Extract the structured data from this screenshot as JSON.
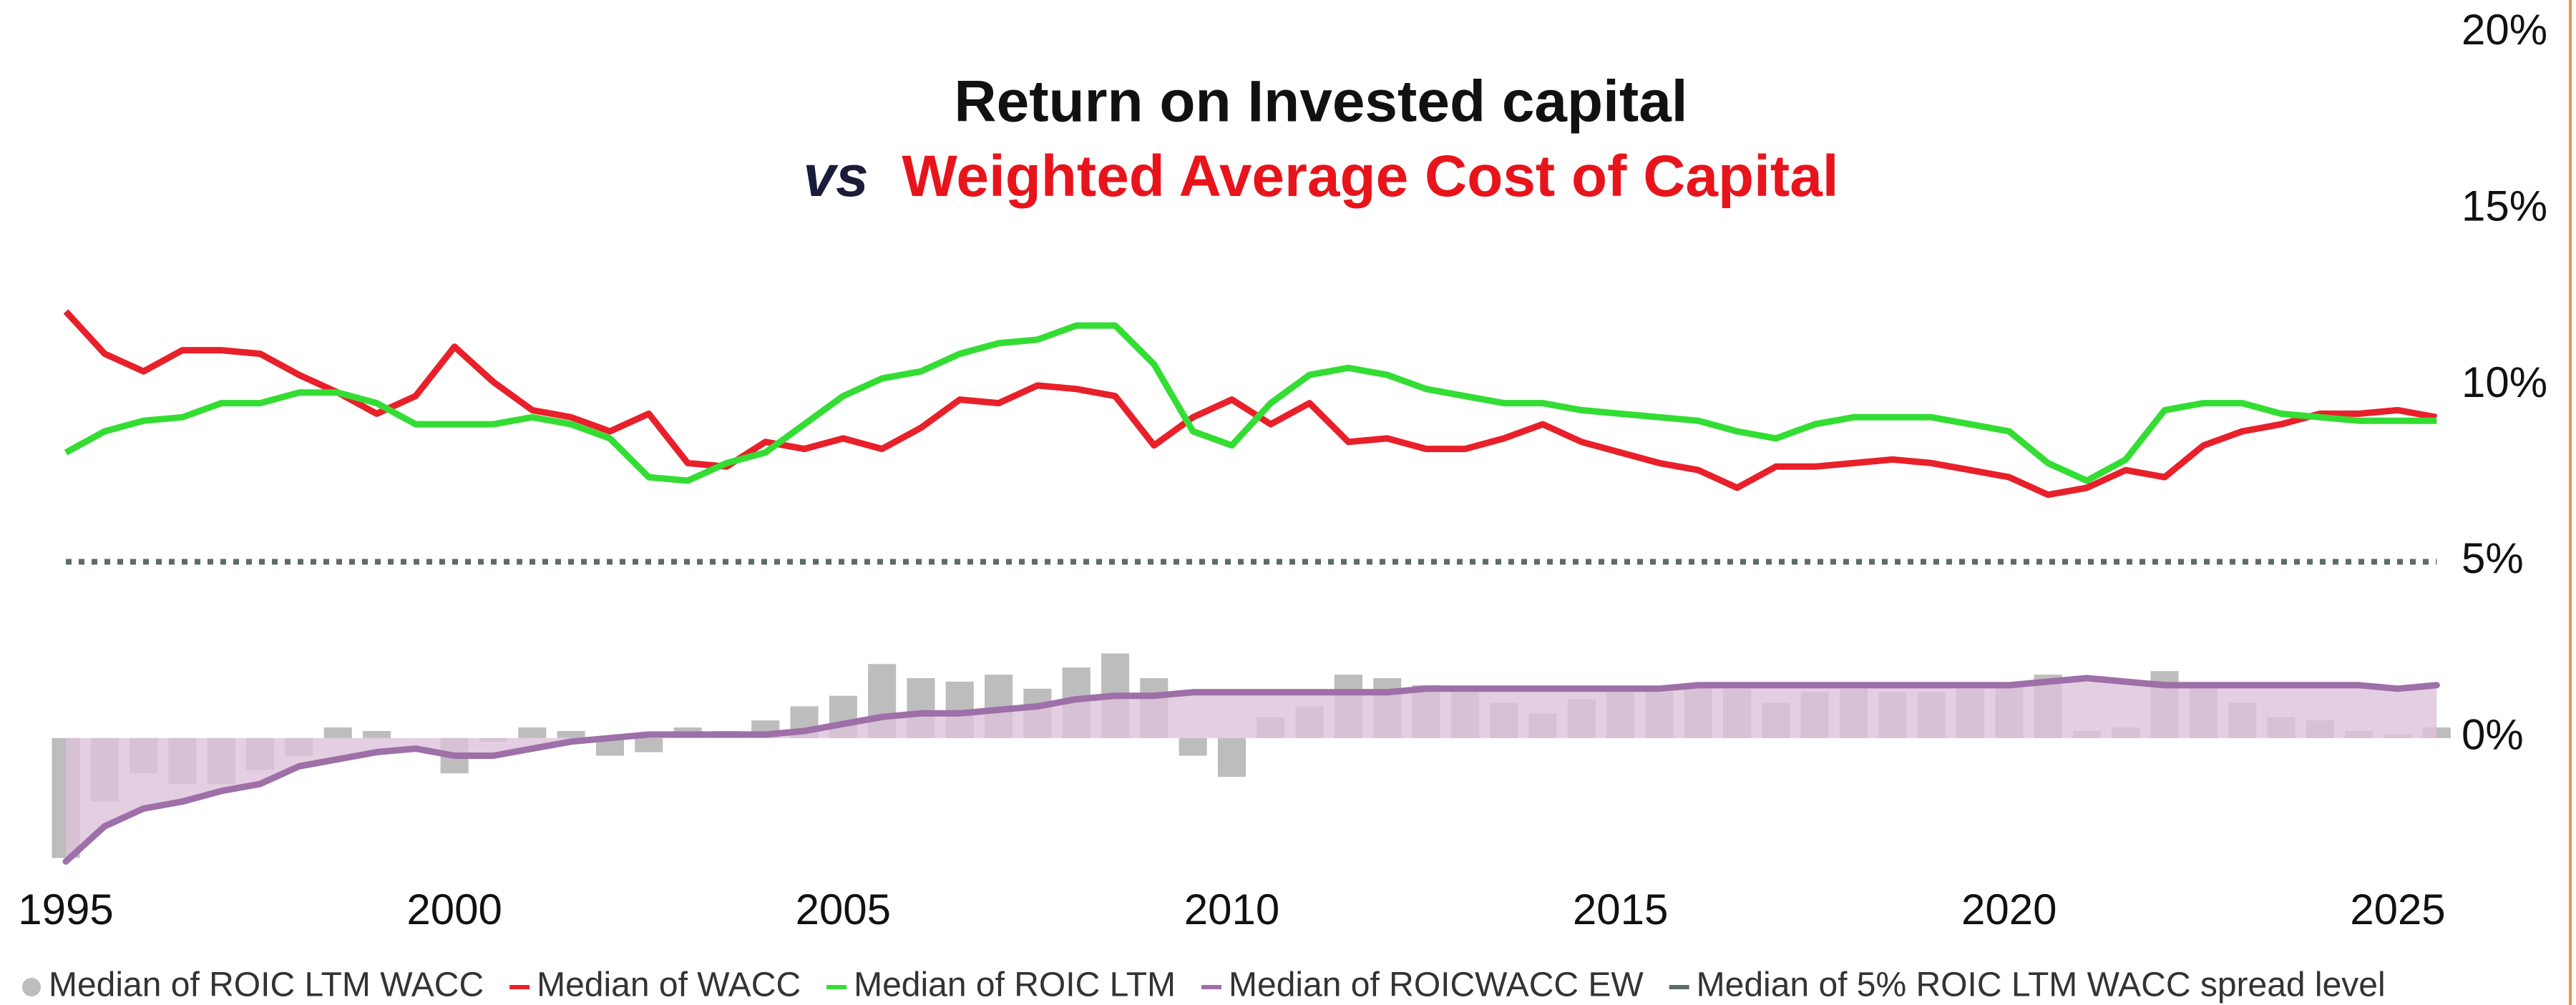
{
  "chart_data": {
    "type": "line",
    "title": "Return on Invested capital",
    "title_color": "#1fb14b",
    "subtitle_prefix": "vs",
    "subtitle_prefix_color": "#1b1b3a",
    "subtitle": "Weighted Average Cost of Capital",
    "subtitle_color": "#e8141c",
    "x": [
      1995,
      1995.5,
      1996,
      1996.5,
      1997,
      1997.5,
      1998,
      1998.5,
      1999,
      1999.5,
      2000,
      2000.5,
      2001,
      2001.5,
      2002,
      2002.5,
      2003,
      2003.5,
      2004,
      2004.5,
      2005,
      2005.5,
      2006,
      2006.5,
      2007,
      2007.5,
      2008,
      2008.5,
      2009,
      2009.5,
      2010,
      2010.5,
      2011,
      2011.5,
      2012,
      2012.5,
      2013,
      2013.5,
      2014,
      2014.5,
      2015,
      2015.5,
      2016,
      2016.5,
      2017,
      2017.5,
      2018,
      2018.5,
      2019,
      2019.5,
      2020,
      2020.5,
      2021,
      2021.5,
      2022,
      2022.5,
      2023,
      2023.5,
      2024,
      2024.5,
      2025,
      2025.5
    ],
    "series": [
      {
        "name": "Median of ROIC LTM WACC",
        "style": "bar",
        "color": "#bdbdbd",
        "values": [
          -3.4,
          -1.8,
          -1.0,
          -1.3,
          -1.3,
          -0.9,
          -0.5,
          0.3,
          0.2,
          0.0,
          -1.0,
          -0.1,
          0.3,
          0.2,
          -0.5,
          -0.4,
          0.3,
          0.2,
          0.5,
          0.9,
          1.2,
          2.1,
          1.7,
          1.6,
          1.8,
          1.4,
          2.0,
          2.4,
          1.7,
          -0.5,
          -1.1,
          0.6,
          0.9,
          1.8,
          1.7,
          1.5,
          1.4,
          1.0,
          0.7,
          1.1,
          1.3,
          1.3,
          1.5,
          1.4,
          1.0,
          1.3,
          1.4,
          1.3,
          1.3,
          1.4,
          1.5,
          1.8,
          0.2,
          0.3,
          1.9,
          1.5,
          1.0,
          0.6,
          0.5,
          0.2,
          0.1,
          0.3
        ]
      },
      {
        "name": "Median of WACC",
        "style": "line",
        "color": "#e8202a",
        "values": [
          12.1,
          10.9,
          10.4,
          11.0,
          11.0,
          10.9,
          10.3,
          9.8,
          9.2,
          9.7,
          11.1,
          10.1,
          9.3,
          9.1,
          8.7,
          9.2,
          7.8,
          7.7,
          8.4,
          8.2,
          8.5,
          8.2,
          8.8,
          9.6,
          9.5,
          10.0,
          9.9,
          9.7,
          8.3,
          9.1,
          9.6,
          8.9,
          9.5,
          8.4,
          8.5,
          8.2,
          8.2,
          8.5,
          8.9,
          8.4,
          8.1,
          7.8,
          7.6,
          7.1,
          7.7,
          7.7,
          7.8,
          7.9,
          7.8,
          7.6,
          7.4,
          6.9,
          7.1,
          7.6,
          7.4,
          8.3,
          8.7,
          8.9,
          9.2,
          9.2,
          9.3,
          9.1
        ]
      },
      {
        "name": "Median of ROIC LTM",
        "style": "line",
        "color": "#33dd33",
        "values": [
          8.1,
          8.7,
          9.0,
          9.1,
          9.5,
          9.5,
          9.8,
          9.8,
          9.5,
          8.9,
          8.9,
          8.9,
          9.1,
          8.9,
          8.5,
          7.4,
          7.3,
          7.8,
          8.1,
          8.9,
          9.7,
          10.2,
          10.4,
          10.9,
          11.2,
          11.3,
          11.7,
          11.7,
          10.6,
          8.7,
          8.3,
          9.5,
          10.3,
          10.5,
          10.3,
          9.9,
          9.7,
          9.5,
          9.5,
          9.3,
          9.2,
          9.1,
          9.0,
          8.7,
          8.5,
          8.9,
          9.1,
          9.1,
          9.1,
          8.9,
          8.7,
          7.8,
          7.3,
          7.9,
          9.3,
          9.5,
          9.5,
          9.2,
          9.1,
          9.0,
          9.0,
          9.0
        ]
      },
      {
        "name": "Median of ROICWACC EW",
        "style": "area",
        "color": "#9e6fa8",
        "fill": "#dcc3da",
        "values": [
          -3.5,
          -2.5,
          -2.0,
          -1.8,
          -1.5,
          -1.3,
          -0.8,
          -0.6,
          -0.4,
          -0.3,
          -0.5,
          -0.5,
          -0.3,
          -0.1,
          0.0,
          0.1,
          0.1,
          0.1,
          0.1,
          0.2,
          0.4,
          0.6,
          0.7,
          0.7,
          0.8,
          0.9,
          1.1,
          1.2,
          1.2,
          1.3,
          1.3,
          1.3,
          1.3,
          1.3,
          1.3,
          1.4,
          1.4,
          1.4,
          1.4,
          1.4,
          1.4,
          1.4,
          1.5,
          1.5,
          1.5,
          1.5,
          1.5,
          1.5,
          1.5,
          1.5,
          1.5,
          1.6,
          1.7,
          1.6,
          1.5,
          1.5,
          1.5,
          1.5,
          1.5,
          1.5,
          1.4,
          1.5
        ]
      },
      {
        "name": "Median of 5% ROIC LTM WACC spread level",
        "style": "dotted",
        "color": "#5f6b68",
        "values": [
          5,
          5,
          5,
          5,
          5,
          5,
          5,
          5,
          5,
          5,
          5,
          5,
          5,
          5,
          5,
          5,
          5,
          5,
          5,
          5,
          5,
          5,
          5,
          5,
          5,
          5,
          5,
          5,
          5,
          5,
          5,
          5,
          5,
          5,
          5,
          5,
          5,
          5,
          5,
          5,
          5,
          5,
          5,
          5,
          5,
          5,
          5,
          5,
          5,
          5,
          5,
          5,
          5,
          5,
          5,
          5,
          5,
          5,
          5,
          5,
          5,
          5
        ]
      }
    ],
    "xlim": [
      1995,
      2025.7
    ],
    "xticks": [
      1995,
      2000,
      2005,
      2010,
      2015,
      2020,
      2025
    ],
    "ylim": [
      -4,
      20
    ],
    "yticks": [
      {
        "value": 0,
        "label": "0%"
      },
      {
        "value": 5,
        "label": "5%"
      },
      {
        "value": 10,
        "label": "10%"
      },
      {
        "value": 15,
        "label": "15%"
      },
      {
        "value": 20,
        "label": "20%"
      }
    ],
    "y_axis_side": "right",
    "grid": false,
    "legend": "bottom"
  }
}
